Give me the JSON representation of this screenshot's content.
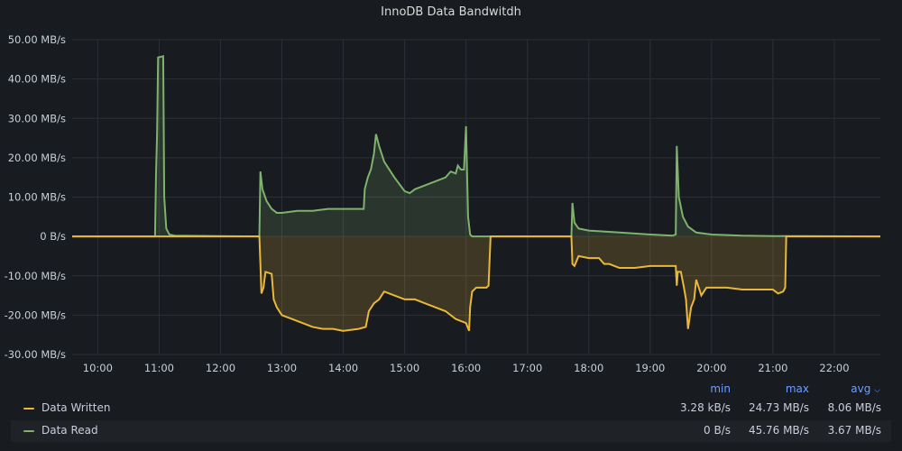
{
  "panel": {
    "title": "InnoDB Data Bandwitdh"
  },
  "legend": {
    "headers": {
      "min": "min",
      "max": "max",
      "avg": "avg"
    },
    "sort_icon": "chevron-down-icon",
    "rows": [
      {
        "name": "Data Written",
        "color": "#eab839",
        "min": "3.28 kB/s",
        "max": "24.73 MB/s",
        "avg": "8.06 MB/s"
      },
      {
        "name": "Data Read",
        "color": "#7eb26d",
        "min": "0 B/s",
        "max": "45.76 MB/s",
        "avg": "3.67 MB/s"
      }
    ]
  },
  "chart_data": {
    "type": "area",
    "title": "InnoDB Data Bandwitdh",
    "y_unit": "MB/s",
    "ylim": [
      -30,
      50
    ],
    "y_ticks": [
      50,
      40,
      30,
      20,
      10,
      0,
      -10,
      -20,
      -30
    ],
    "y_tick_labels": [
      "50.00 MB/s",
      "40.00 MB/s",
      "30.00 MB/s",
      "20.00 MB/s",
      "10.00 MB/s",
      "0 B/s",
      "-10.00 MB/s",
      "-20.00 MB/s",
      "-30.00 MB/s"
    ],
    "xlim": [
      "09:35",
      "22:45"
    ],
    "x_ticks": [
      "10:00",
      "11:00",
      "12:00",
      "13:00",
      "14:00",
      "15:00",
      "16:00",
      "17:00",
      "18:00",
      "19:00",
      "20:00",
      "21:00",
      "22:00"
    ],
    "grid": true,
    "legend_position": "bottom",
    "series": [
      {
        "name": "Data Read",
        "color": "#7eb26d",
        "points": [
          [
            "09:35",
            0
          ],
          [
            "10:56",
            0
          ],
          [
            "10:57",
            16
          ],
          [
            "10:58",
            26
          ],
          [
            "10:59",
            45.5
          ],
          [
            "11:04",
            45.8
          ],
          [
            "11:05",
            10
          ],
          [
            "11:07",
            2
          ],
          [
            "11:10",
            0.5
          ],
          [
            "11:15",
            0.2
          ],
          [
            "12:38",
            0
          ],
          [
            "12:39",
            16.5
          ],
          [
            "12:41",
            12
          ],
          [
            "12:45",
            9
          ],
          [
            "12:50",
            7
          ],
          [
            "12:55",
            6
          ],
          [
            "13:00",
            6
          ],
          [
            "13:15",
            6.5
          ],
          [
            "13:30",
            6.5
          ],
          [
            "13:45",
            7
          ],
          [
            "14:00",
            7
          ],
          [
            "14:15",
            7
          ],
          [
            "14:20",
            7
          ],
          [
            "14:21",
            12
          ],
          [
            "14:24",
            15
          ],
          [
            "14:27",
            17
          ],
          [
            "14:30",
            21
          ],
          [
            "14:32",
            26
          ],
          [
            "14:35",
            23
          ],
          [
            "14:40",
            19
          ],
          [
            "14:45",
            17
          ],
          [
            "14:50",
            15
          ],
          [
            "15:00",
            11.5
          ],
          [
            "15:05",
            11
          ],
          [
            "15:10",
            12
          ],
          [
            "15:20",
            13
          ],
          [
            "15:30",
            14
          ],
          [
            "15:40",
            15
          ],
          [
            "15:45",
            16.5
          ],
          [
            "15:50",
            16
          ],
          [
            "15:52",
            18
          ],
          [
            "15:55",
            17
          ],
          [
            "15:58",
            17
          ],
          [
            "16:00",
            28
          ],
          [
            "16:02",
            5
          ],
          [
            "16:04",
            0.5
          ],
          [
            "16:06",
            0
          ],
          [
            "17:43",
            0
          ],
          [
            "17:44",
            8.5
          ],
          [
            "17:46",
            3.5
          ],
          [
            "17:50",
            2
          ],
          [
            "18:00",
            1.5
          ],
          [
            "18:30",
            1
          ],
          [
            "19:00",
            0.5
          ],
          [
            "19:22",
            0.2
          ],
          [
            "19:25",
            0.5
          ],
          [
            "19:26",
            23
          ],
          [
            "19:28",
            10
          ],
          [
            "19:32",
            5
          ],
          [
            "19:37",
            2.5
          ],
          [
            "19:45",
            1
          ],
          [
            "20:00",
            0.5
          ],
          [
            "20:30",
            0.2
          ],
          [
            "21:00",
            0.1
          ],
          [
            "22:45",
            0
          ]
        ]
      },
      {
        "name": "Data Written",
        "color": "#eab839",
        "points": [
          [
            "09:35",
            0
          ],
          [
            "12:38",
            0
          ],
          [
            "12:39",
            -7
          ],
          [
            "12:40",
            -14.5
          ],
          [
            "12:42",
            -13
          ],
          [
            "12:44",
            -9
          ],
          [
            "12:50",
            -9.5
          ],
          [
            "12:52",
            -16
          ],
          [
            "12:55",
            -18
          ],
          [
            "13:00",
            -20
          ],
          [
            "13:10",
            -21
          ],
          [
            "13:20",
            -22
          ],
          [
            "13:30",
            -23
          ],
          [
            "13:40",
            -23.5
          ],
          [
            "13:50",
            -23.5
          ],
          [
            "14:00",
            -24
          ],
          [
            "14:15",
            -23.5
          ],
          [
            "14:22",
            -23
          ],
          [
            "14:25",
            -19
          ],
          [
            "14:30",
            -17
          ],
          [
            "14:35",
            -16
          ],
          [
            "14:40",
            -14
          ],
          [
            "14:50",
            -15
          ],
          [
            "15:00",
            -16
          ],
          [
            "15:10",
            -16
          ],
          [
            "15:20",
            -17
          ],
          [
            "15:30",
            -18
          ],
          [
            "15:40",
            -19
          ],
          [
            "15:50",
            -21
          ],
          [
            "16:00",
            -22
          ],
          [
            "16:03",
            -24
          ],
          [
            "16:04",
            -18
          ],
          [
            "16:06",
            -14
          ],
          [
            "16:10",
            -13
          ],
          [
            "16:20",
            -13
          ],
          [
            "16:22",
            -12.5
          ],
          [
            "16:24",
            0
          ],
          [
            "17:43",
            0
          ],
          [
            "17:44",
            -7
          ],
          [
            "17:46",
            -7.5
          ],
          [
            "17:50",
            -5
          ],
          [
            "18:00",
            -5.5
          ],
          [
            "18:10",
            -5.5
          ],
          [
            "18:15",
            -7
          ],
          [
            "18:20",
            -7
          ],
          [
            "18:30",
            -8
          ],
          [
            "18:45",
            -8
          ],
          [
            "19:00",
            -7.5
          ],
          [
            "19:15",
            -7.5
          ],
          [
            "19:25",
            -7.5
          ],
          [
            "19:26",
            -12.5
          ],
          [
            "19:27",
            -9
          ],
          [
            "19:30",
            -9
          ],
          [
            "19:33",
            -13
          ],
          [
            "19:35",
            -16
          ],
          [
            "19:37",
            -23.5
          ],
          [
            "19:40",
            -18
          ],
          [
            "19:43",
            -16
          ],
          [
            "19:45",
            -11
          ],
          [
            "19:50",
            -15
          ],
          [
            "19:55",
            -13
          ],
          [
            "20:05",
            -13
          ],
          [
            "20:15",
            -13
          ],
          [
            "20:30",
            -13.5
          ],
          [
            "20:45",
            -13.5
          ],
          [
            "21:00",
            -13.5
          ],
          [
            "21:05",
            -14.5
          ],
          [
            "21:10",
            -14
          ],
          [
            "21:12",
            -13
          ],
          [
            "21:13",
            0
          ],
          [
            "22:45",
            0
          ]
        ]
      }
    ]
  }
}
